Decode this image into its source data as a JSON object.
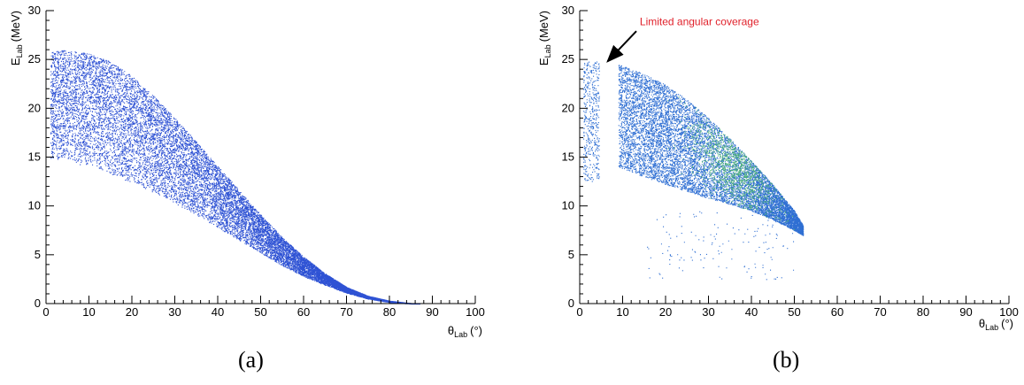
{
  "colors": {
    "points_a": "#2e52d4",
    "points_b": "#2f6fd3",
    "points_b_dense": "#4caf7a",
    "annotation": "#e0202a",
    "axes": "#000000"
  },
  "chart_data": [
    {
      "type": "scatter",
      "panel_caption": "(a)",
      "xlabel": {
        "symbol": "θ",
        "subscript": "Lab",
        "unit": "(°)"
      },
      "ylabel": {
        "symbol": "E",
        "subscript": "Lab",
        "unit": "(MeV)"
      },
      "xlim": [
        0,
        100
      ],
      "ylim": [
        0,
        30
      ],
      "x_ticks": [
        "0",
        "10",
        "20",
        "30",
        "40",
        "50",
        "60",
        "70",
        "80",
        "90",
        "100"
      ],
      "y_ticks": [
        "0",
        "5",
        "10",
        "15",
        "20",
        "25",
        "30"
      ],
      "grid": false,
      "region": {
        "upper_edge": [
          [
            1,
            25.8
          ],
          [
            5,
            26.0
          ],
          [
            10,
            25.6
          ],
          [
            15,
            24.8
          ],
          [
            20,
            23.3
          ],
          [
            25,
            21.3
          ],
          [
            30,
            19.0
          ],
          [
            35,
            16.6
          ],
          [
            40,
            14.1
          ],
          [
            45,
            11.6
          ],
          [
            50,
            9.1
          ],
          [
            55,
            6.8
          ],
          [
            60,
            4.8
          ],
          [
            65,
            3.1
          ],
          [
            70,
            1.7
          ],
          [
            75,
            0.8
          ],
          [
            80,
            0.3
          ],
          [
            85,
            0.05
          ],
          [
            87,
            0
          ]
        ],
        "lower_edge": [
          [
            1,
            14.8
          ],
          [
            5,
            14.6
          ],
          [
            10,
            14.0
          ],
          [
            15,
            13.3
          ],
          [
            20,
            12.4
          ],
          [
            25,
            11.4
          ],
          [
            30,
            10.3
          ],
          [
            35,
            9.1
          ],
          [
            40,
            7.8
          ],
          [
            45,
            6.5
          ],
          [
            50,
            5.2
          ],
          [
            55,
            3.9
          ],
          [
            60,
            2.8
          ],
          [
            65,
            1.9
          ],
          [
            70,
            1.1
          ],
          [
            75,
            0.5
          ],
          [
            80,
            0.15
          ],
          [
            85,
            0.0
          ],
          [
            87,
            0
          ]
        ]
      }
    },
    {
      "type": "scatter",
      "panel_caption": "(b)",
      "xlabel": {
        "symbol": "θ",
        "subscript": "Lab",
        "unit": "(°)"
      },
      "ylabel": {
        "symbol": "E",
        "subscript": "Lab",
        "unit": "(MeV)"
      },
      "xlim": [
        0,
        100
      ],
      "ylim": [
        0,
        30
      ],
      "x_ticks": [
        "0",
        "10",
        "20",
        "30",
        "40",
        "50",
        "60",
        "70",
        "80",
        "90",
        "100"
      ],
      "y_ticks": [
        "0",
        "5",
        "10",
        "15",
        "20",
        "25",
        "30"
      ],
      "grid": false,
      "annotation": {
        "text": "Limited angular coverage",
        "text_at": [
          14,
          28.5
        ],
        "arrow_to": [
          6.5,
          24.8
        ]
      },
      "strip": {
        "x_range": [
          0.8,
          4.5
        ],
        "y_range": [
          12.5,
          24.8
        ]
      },
      "region": {
        "upper_edge": [
          [
            9,
            24.5
          ],
          [
            15,
            23.6
          ],
          [
            20,
            22.4
          ],
          [
            25,
            20.9
          ],
          [
            30,
            19.0
          ],
          [
            35,
            16.9
          ],
          [
            40,
            14.6
          ],
          [
            45,
            12.2
          ],
          [
            50,
            9.5
          ],
          [
            52,
            8.0
          ]
        ],
        "lower_edge": [
          [
            9,
            14.0
          ],
          [
            15,
            13.0
          ],
          [
            20,
            12.2
          ],
          [
            25,
            11.5
          ],
          [
            30,
            10.8
          ],
          [
            35,
            10.2
          ],
          [
            40,
            9.5
          ],
          [
            45,
            8.6
          ],
          [
            50,
            7.5
          ],
          [
            52,
            7.0
          ]
        ]
      },
      "sparse_region": {
        "x_range": [
          15,
          50
        ],
        "y_range": [
          2.5,
          9.5
        ]
      }
    }
  ]
}
